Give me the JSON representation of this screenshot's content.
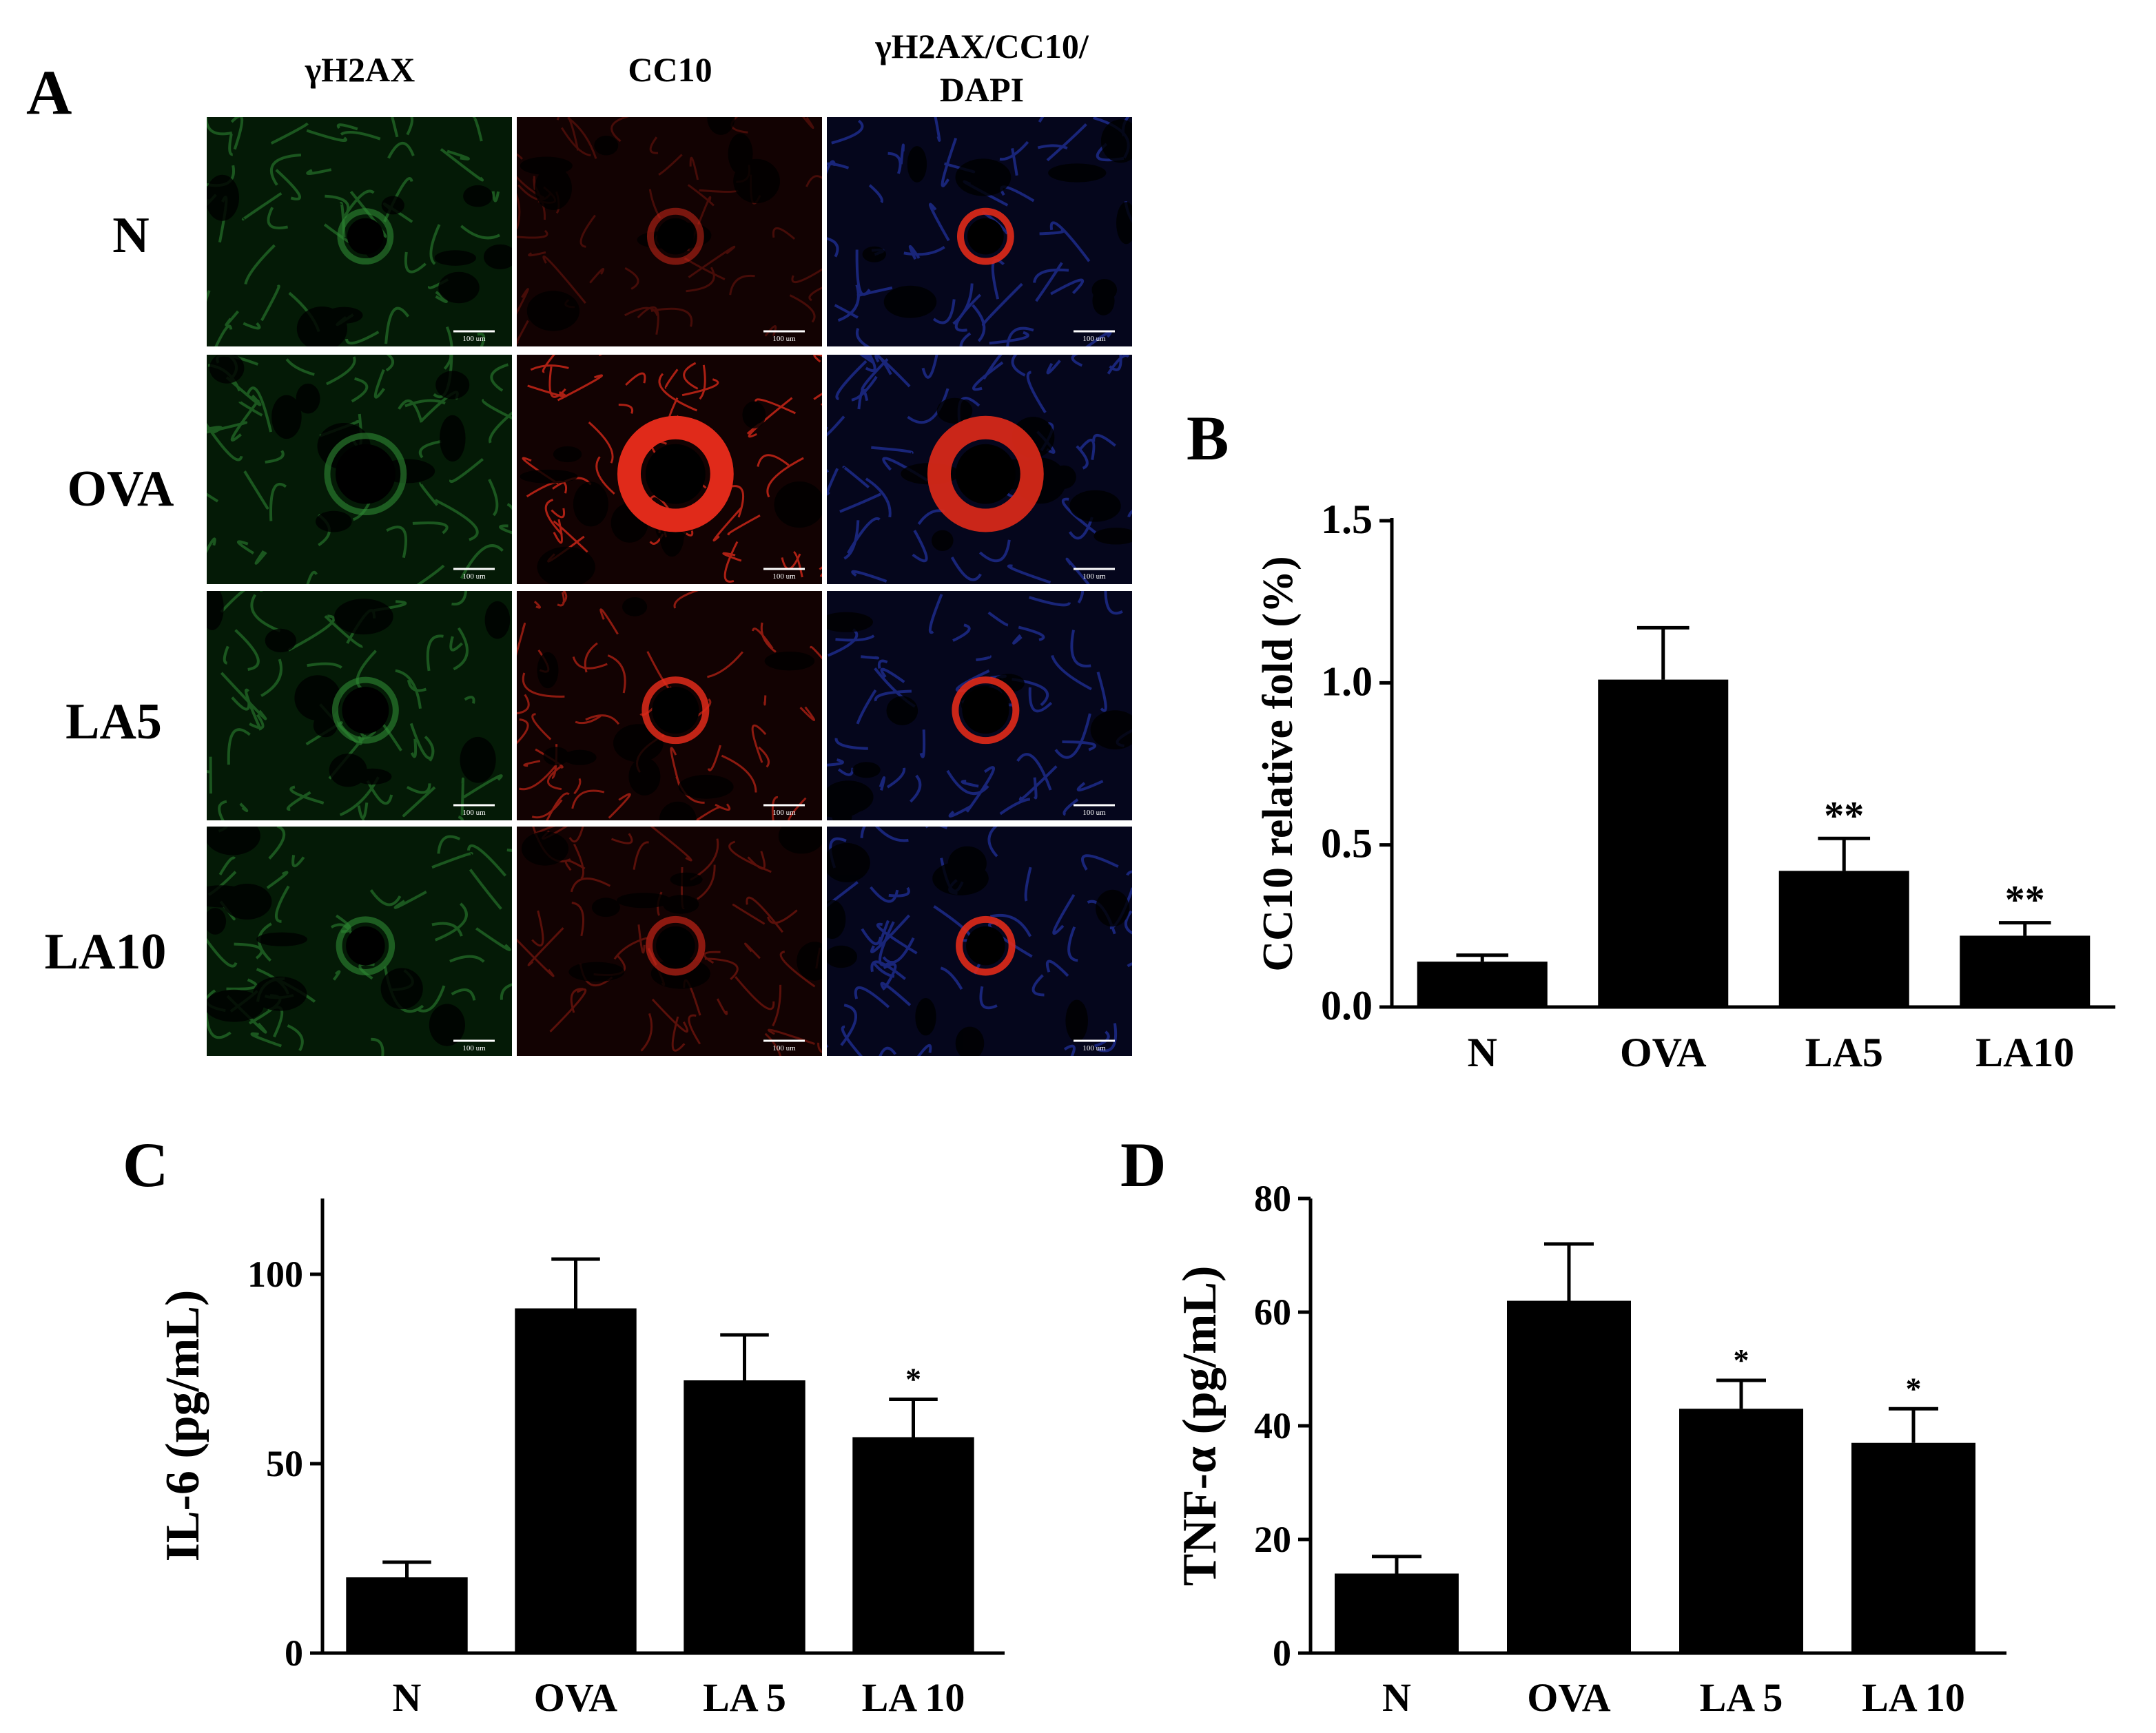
{
  "figure": {
    "panels": [
      "A",
      "B",
      "C",
      "D"
    ],
    "panel_a": {
      "columns": [
        "γH2AX",
        "CC10",
        "γH2AX/CC10/\nDAPI"
      ],
      "rows": [
        "N",
        "OVA",
        "LA5",
        "LA10"
      ],
      "scale_bar_label": "100 um",
      "channel_colors": {
        "green": "#2f8a34",
        "red": "#e02a1a",
        "blue": "#2a3fc6"
      }
    }
  },
  "chart_data": [
    {
      "panel": "B",
      "type": "bar",
      "categories": [
        "N",
        "OVA",
        "LA5",
        "LA10"
      ],
      "values": [
        0.14,
        1.01,
        0.42,
        0.22
      ],
      "errors": [
        0.02,
        0.16,
        0.1,
        0.04
      ],
      "significance": [
        "",
        "",
        "**",
        "**"
      ],
      "ylabel": "CC10 relative fold (%)",
      "ylim": [
        0,
        1.5
      ],
      "yticks": [
        "0.0",
        "0.5",
        "1.0",
        "1.5"
      ],
      "bar_color": "#000000"
    },
    {
      "panel": "C",
      "type": "bar",
      "categories": [
        "N",
        "OVA",
        "LA 5",
        "LA 10"
      ],
      "values": [
        20,
        91,
        72,
        57
      ],
      "errors": [
        4,
        13,
        12,
        10
      ],
      "significance": [
        "",
        "",
        "",
        "*"
      ],
      "ylabel": "IL-6 (pg/mL)",
      "ylim": [
        0,
        120
      ],
      "yticks": [
        "0",
        "50",
        "100"
      ],
      "bar_color": "#000000"
    },
    {
      "panel": "D",
      "type": "bar",
      "categories": [
        "N",
        "OVA",
        "LA 5",
        "LA 10"
      ],
      "values": [
        14,
        62,
        43,
        37
      ],
      "errors": [
        3,
        10,
        5,
        6
      ],
      "significance": [
        "",
        "",
        "*",
        "*"
      ],
      "ylabel": "TNF-α (pg/mL)",
      "ylim": [
        0,
        80
      ],
      "yticks": [
        "0",
        "20",
        "40",
        "60",
        "80"
      ],
      "bar_color": "#000000"
    }
  ]
}
